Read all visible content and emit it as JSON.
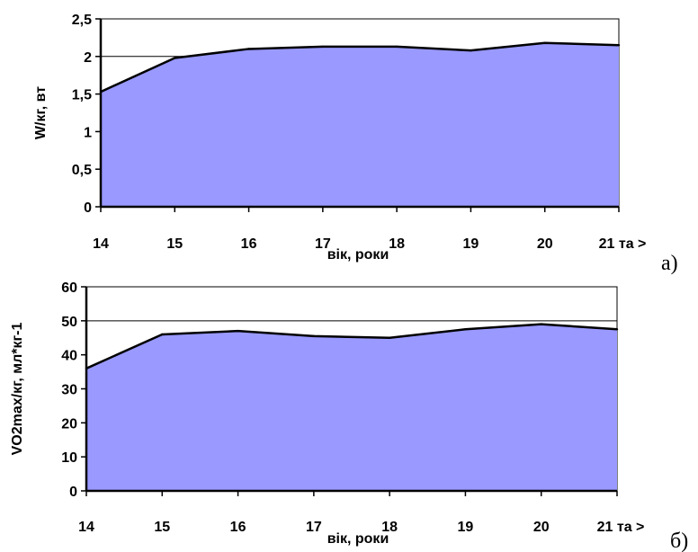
{
  "chart_data": [
    {
      "type": "area",
      "panel_label": "а)",
      "categories": [
        "14",
        "15",
        "16",
        "17",
        "18",
        "19",
        "20",
        "21 та >"
      ],
      "values": [
        1.53,
        1.98,
        2.1,
        2.13,
        2.13,
        2.08,
        2.18,
        2.15
      ],
      "ylim": [
        0,
        2.5
      ],
      "yticks": [
        "0",
        "0,5",
        "1",
        "1,5",
        "2",
        "2,5"
      ],
      "ytick_values": [
        0,
        0.5,
        1,
        1.5,
        2,
        2.5
      ],
      "gridlines": [
        2
      ],
      "xlabel": "вік, роки",
      "ylabel": "W/кг, вт",
      "fill_color": "#9999ff",
      "line_color": "#000000"
    },
    {
      "type": "area",
      "panel_label": "б)",
      "categories": [
        "14",
        "15",
        "16",
        "17",
        "18",
        "19",
        "20",
        "21 та >"
      ],
      "values": [
        36,
        46,
        47,
        45.5,
        45,
        47.5,
        49,
        47.5
      ],
      "ylim": [
        0,
        60
      ],
      "yticks": [
        "0",
        "10",
        "20",
        "30",
        "40",
        "50",
        "60"
      ],
      "ytick_values": [
        0,
        10,
        20,
        30,
        40,
        50,
        60
      ],
      "gridlines": [
        50
      ],
      "xlabel": "вік, роки",
      "ylabel": "VO2max/кг, мл*кг-1",
      "fill_color": "#9999ff",
      "line_color": "#000000"
    }
  ]
}
